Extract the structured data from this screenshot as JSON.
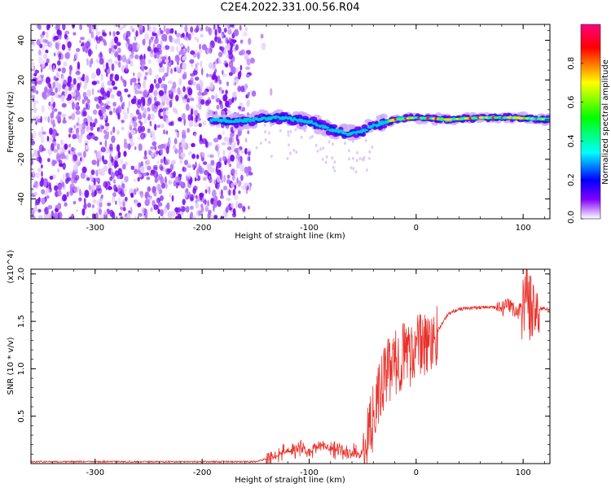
{
  "page": {
    "title": "C2E4.2022.331.00.56.R04"
  },
  "chart_data": [
    {
      "type": "heatmap",
      "title": "C2E4.2022.331.00.56.R04",
      "xlabel": "Height of straight line (km)",
      "ylabel": "Frequency (Hz)",
      "xlim": [
        -360,
        125
      ],
      "ylim": [
        -50,
        48
      ],
      "x_ticks": [
        -300,
        -200,
        -100,
        0,
        100
      ],
      "y_ticks": [
        -40,
        -20,
        0,
        20,
        40
      ],
      "colorbar": {
        "label": "Normalized spectral amplitude",
        "range": [
          0,
          1
        ],
        "ticks": [
          "0.0",
          "0.2",
          "0.4",
          "0.6",
          "0.8"
        ],
        "colors": [
          "#ff0080",
          "#ff0000",
          "#ffff00",
          "#00ff00",
          "#00ffff",
          "#0000ff",
          "#8000ff",
          "#ffffff"
        ]
      },
      "ridge": [
        {
          "x": -190,
          "y": 0
        },
        {
          "x": -170,
          "y": -1
        },
        {
          "x": -150,
          "y": 0
        },
        {
          "x": -130,
          "y": 1
        },
        {
          "x": -110,
          "y": 0
        },
        {
          "x": -95,
          "y": -2
        },
        {
          "x": -80,
          "y": -5
        },
        {
          "x": -65,
          "y": -7
        },
        {
          "x": -50,
          "y": -6
        },
        {
          "x": -40,
          "y": -3
        },
        {
          "x": -20,
          "y": 0
        },
        {
          "x": 0,
          "y": 1
        },
        {
          "x": 30,
          "y": 0
        },
        {
          "x": 60,
          "y": 1
        },
        {
          "x": 90,
          "y": 1
        },
        {
          "x": 125,
          "y": 0
        }
      ],
      "noise_region_x": [
        -360,
        -155
      ]
    },
    {
      "type": "line",
      "xlabel": "Height of straight line (km)",
      "ylabel": "SNR (10 * v/v)",
      "y_multiplier": "(x10^4)",
      "xlim": [
        -360,
        125
      ],
      "ylim": [
        0,
        2.05
      ],
      "x_ticks": [
        -300,
        -200,
        -100,
        0,
        100
      ],
      "y_ticks": [
        "0.5",
        "1.0",
        "1.5",
        "2.0"
      ],
      "series": [
        {
          "color": "#e8302a",
          "x": [
            -360,
            -250,
            -150,
            -130,
            -120,
            -110,
            -100,
            -90,
            -80,
            -70,
            -60,
            -50,
            -45,
            -40,
            -35,
            -30,
            -25,
            -20,
            -15,
            -10,
            -5,
            0,
            10,
            20,
            30,
            40,
            50,
            60,
            70,
            80,
            85,
            90,
            95,
            100,
            103,
            106,
            110,
            115,
            120,
            125
          ],
          "y": [
            0.02,
            0.02,
            0.02,
            0.08,
            0.12,
            0.18,
            0.12,
            0.2,
            0.15,
            0.14,
            0.12,
            0.1,
            0.25,
            0.5,
            0.7,
            0.9,
            1.0,
            1.05,
            1.1,
            1.2,
            1.15,
            1.25,
            1.25,
            1.4,
            1.58,
            1.63,
            1.64,
            1.65,
            1.65,
            1.63,
            1.66,
            1.64,
            1.6,
            1.66,
            1.9,
            1.65,
            1.62,
            1.63,
            1.64,
            1.61
          ]
        }
      ]
    }
  ]
}
